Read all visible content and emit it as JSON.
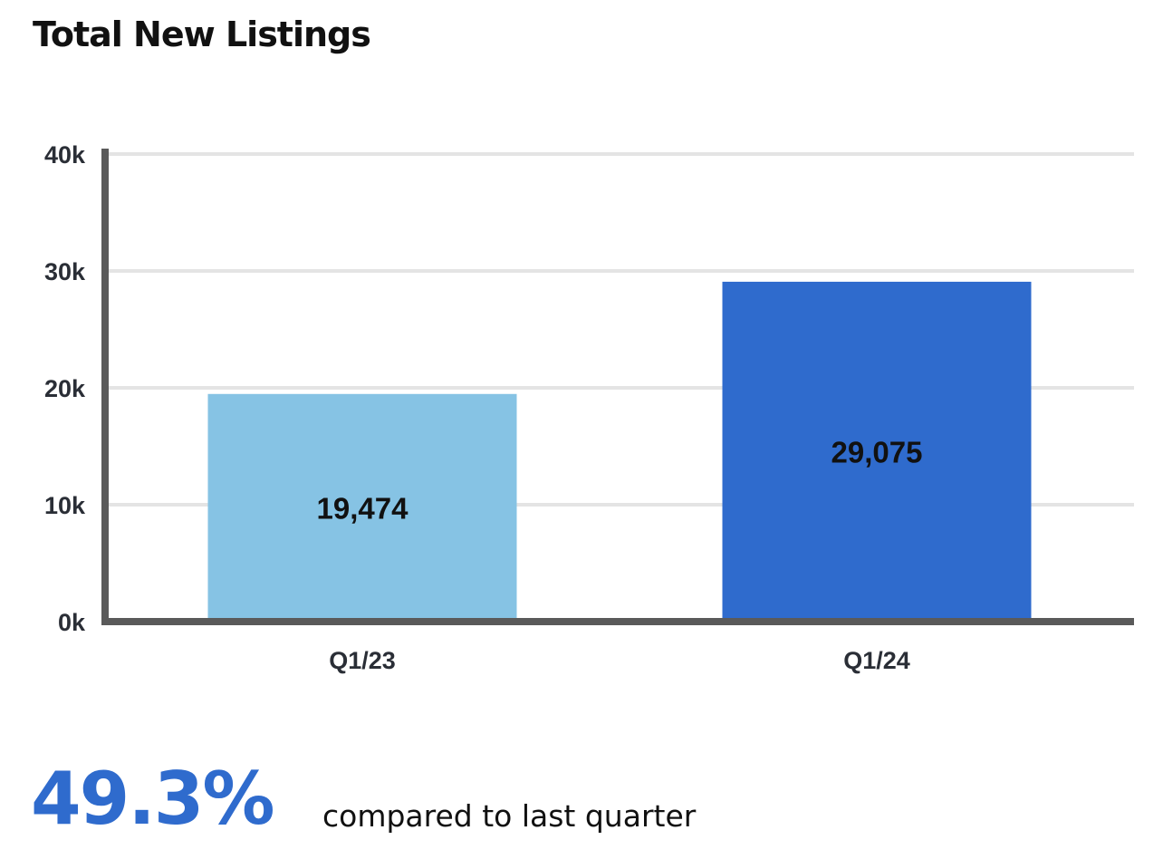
{
  "chart_data": {
    "type": "bar",
    "title": "Total New Listings",
    "categories": [
      "Q1/23",
      "Q1/24"
    ],
    "values": [
      19474,
      29075
    ],
    "value_labels": [
      "19,474",
      "29,075"
    ],
    "bar_colors": [
      "#86c3e4",
      "#2f6bcd"
    ],
    "ylim": [
      0,
      40000
    ],
    "yticks": [
      0,
      10000,
      20000,
      30000,
      40000
    ],
    "ytick_labels": [
      "0k",
      "10k",
      "20k",
      "30k",
      "40k"
    ],
    "xlabel": "",
    "ylabel": "",
    "grid": true,
    "legend": "none"
  },
  "summary": {
    "change_value": "49.3%",
    "caption": "compared to last quarter",
    "accent_color": "#2f6bcd"
  },
  "colors": {
    "axis": "#5a5a5a",
    "grid": "#e4e4e4",
    "text": "#111111"
  }
}
